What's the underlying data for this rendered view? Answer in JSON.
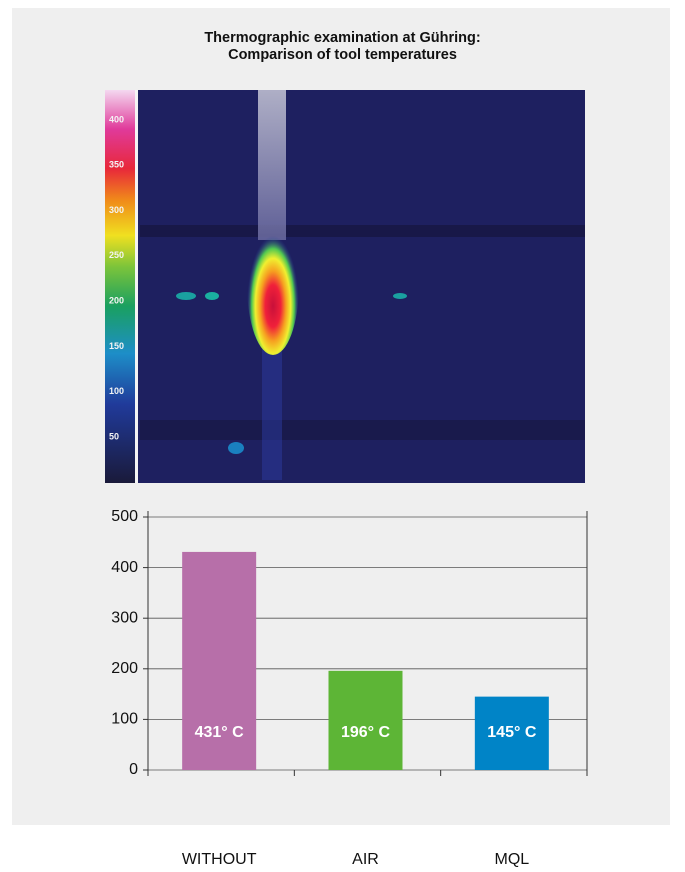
{
  "chart_data": {
    "type": "bar",
    "title": "Thermographic examination at Gühring: Comparison of tool temperatures",
    "categories": [
      "WITHOUT",
      "AIR",
      "MQL"
    ],
    "values": [
      431,
      196,
      145
    ],
    "value_labels": [
      "431° C",
      "196° C",
      "145° C"
    ],
    "colors": [
      "#b76fa9",
      "#5db536",
      "#0084c7"
    ],
    "ylim": [
      0,
      500
    ],
    "yticks": [
      0,
      100,
      200,
      300,
      400,
      500
    ],
    "grid": true
  },
  "thermal_image": {
    "scale_ticks": [
      400,
      350,
      300,
      250,
      200,
      150,
      100,
      50
    ]
  }
}
